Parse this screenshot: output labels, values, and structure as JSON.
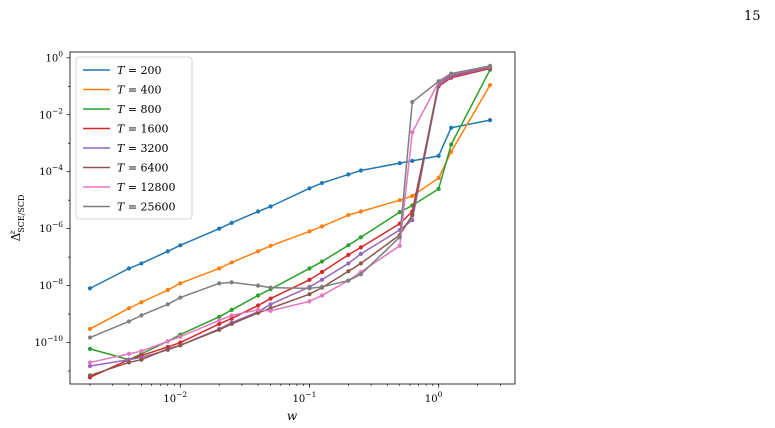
{
  "page_number": "15",
  "chart_data": {
    "type": "line",
    "title": "",
    "xlabel": "w",
    "ylabel": "Δ^z_SCE/SCD",
    "ylabel_main": "Δ",
    "ylabel_sup": "z",
    "ylabel_sub": "SCE/SCD",
    "xscale": "log",
    "yscale": "log",
    "xlim": [
      0.0014,
      3.9
    ],
    "ylim": [
      3.5e-12,
      1.6
    ],
    "xticks": [
      {
        "value": 0.01,
        "base": "10",
        "exp": "−2"
      },
      {
        "value": 0.1,
        "base": "10",
        "exp": "−1"
      },
      {
        "value": 1,
        "base": "10",
        "exp": "0"
      }
    ],
    "yticks": [
      {
        "value": 1e-10,
        "base": "10",
        "exp": "−10"
      },
      {
        "value": 1e-08,
        "base": "10",
        "exp": "−8"
      },
      {
        "value": 1e-06,
        "base": "10",
        "exp": "−6"
      },
      {
        "value": 0.0001,
        "base": "10",
        "exp": "−4"
      },
      {
        "value": 0.01,
        "base": "10",
        "exp": "−2"
      },
      {
        "value": 1,
        "base": "10",
        "exp": "0"
      }
    ],
    "grid": false,
    "legend_position": "top-left",
    "series": [
      {
        "name": "T = 200",
        "label_var": "T",
        "label_val": "= 200",
        "color": "#1f77b4",
        "x": [
          0.002,
          0.004,
          0.005,
          0.008,
          0.01,
          0.02,
          0.025,
          0.04,
          0.05,
          0.1,
          0.125,
          0.2,
          0.25,
          0.5,
          0.625,
          1.0,
          1.25,
          2.5
        ],
        "y": [
          8e-09,
          4e-08,
          6e-08,
          1.6e-07,
          2.6e-07,
          1e-06,
          1.6e-06,
          4e-06,
          6e-06,
          2.6e-05,
          4e-05,
          8e-05,
          0.00011,
          0.0002,
          0.00024,
          0.00036,
          0.0035,
          0.0065
        ]
      },
      {
        "name": "T = 400",
        "label_var": "T",
        "label_val": "= 400",
        "color": "#ff7f0e",
        "x": [
          0.002,
          0.004,
          0.005,
          0.008,
          0.01,
          0.02,
          0.025,
          0.04,
          0.05,
          0.1,
          0.125,
          0.2,
          0.25,
          0.5,
          0.625,
          1.0,
          1.25,
          2.5
        ],
        "y": [
          3e-10,
          1.6e-09,
          2.6e-09,
          7e-09,
          1.2e-08,
          4e-08,
          6.5e-08,
          1.6e-07,
          2.5e-07,
          8e-07,
          1.2e-06,
          3e-06,
          4e-06,
          1e-05,
          1.4e-05,
          6e-05,
          0.0005,
          0.11
        ]
      },
      {
        "name": "T = 800",
        "label_var": "T",
        "label_val": "= 800",
        "color": "#2ca02c",
        "x": [
          0.002,
          0.004,
          0.005,
          0.008,
          0.01,
          0.02,
          0.025,
          0.04,
          0.05,
          0.1,
          0.125,
          0.2,
          0.25,
          0.5,
          0.625,
          1.0,
          1.25,
          2.5
        ],
        "y": [
          6e-11,
          2.5e-11,
          4e-11,
          1.1e-10,
          1.9e-10,
          8e-10,
          1.4e-09,
          4.5e-09,
          7.5e-09,
          4e-08,
          7e-08,
          2.6e-07,
          5e-07,
          3.8e-06,
          6.5e-06,
          2.5e-05,
          0.0009,
          0.38
        ]
      },
      {
        "name": "T = 1600",
        "label_var": "T",
        "label_val": "= 1600",
        "color": "#d62728",
        "x": [
          0.002,
          0.004,
          0.005,
          0.008,
          0.01,
          0.02,
          0.025,
          0.04,
          0.05,
          0.1,
          0.125,
          0.2,
          0.25,
          0.5,
          0.625,
          1.0,
          1.25,
          2.5
        ],
        "y": [
          6e-12,
          2.5e-11,
          3.5e-11,
          7e-11,
          1e-10,
          4.5e-10,
          7e-10,
          2e-09,
          3.5e-09,
          1.6e-08,
          3e-08,
          1.2e-07,
          2.2e-07,
          1.5e-06,
          4e-06,
          0.1,
          0.2,
          0.42
        ]
      },
      {
        "name": "T = 3200",
        "label_var": "T",
        "label_val": "= 3200",
        "color": "#9467bd",
        "x": [
          0.002,
          0.004,
          0.005,
          0.008,
          0.01,
          0.02,
          0.025,
          0.04,
          0.05,
          0.1,
          0.125,
          0.2,
          0.25,
          0.5,
          0.625,
          1.0,
          1.25,
          2.5
        ],
        "y": [
          1.5e-11,
          2.5e-11,
          3e-11,
          5.5e-11,
          8e-11,
          3e-10,
          5e-10,
          1.2e-09,
          2.2e-09,
          9e-09,
          1.6e-08,
          6e-08,
          1.3e-07,
          9e-07,
          2e-06,
          0.11,
          0.22,
          0.45
        ]
      },
      {
        "name": "T = 6400",
        "label_var": "T",
        "label_val": "= 6400",
        "color": "#8c564b",
        "x": [
          0.002,
          0.004,
          0.005,
          0.008,
          0.01,
          0.02,
          0.025,
          0.04,
          0.05,
          0.1,
          0.125,
          0.2,
          0.25,
          0.5,
          0.625,
          1.0,
          1.25,
          2.5
        ],
        "y": [
          7e-12,
          2e-11,
          2.5e-11,
          6e-11,
          8e-11,
          2.8e-10,
          4.5e-10,
          1.1e-09,
          1.6e-09,
          5e-09,
          8.5e-09,
          3.2e-08,
          6e-08,
          6e-07,
          3e-06,
          0.13,
          0.25,
          0.48
        ]
      },
      {
        "name": "T = 12800",
        "label_var": "T",
        "label_val": "= 12800",
        "color": "#e377c2",
        "x": [
          0.002,
          0.004,
          0.005,
          0.008,
          0.01,
          0.02,
          0.025,
          0.04,
          0.05,
          0.1,
          0.125,
          0.2,
          0.25,
          0.5,
          0.625,
          1.0,
          1.25,
          2.5
        ],
        "y": [
          2e-11,
          4e-11,
          5e-11,
          1.1e-10,
          1.6e-10,
          6e-10,
          9e-10,
          1.4e-09,
          1.3e-09,
          2.8e-09,
          4.5e-09,
          1.5e-08,
          3e-08,
          2.5e-07,
          0.0024,
          0.14,
          0.27,
          0.5
        ]
      },
      {
        "name": "T = 25600",
        "label_var": "T",
        "label_val": "= 25600",
        "color": "#7f7f7f",
        "x": [
          0.002,
          0.004,
          0.005,
          0.008,
          0.01,
          0.02,
          0.025,
          0.04,
          0.05,
          0.1,
          0.125,
          0.2,
          0.25,
          0.5,
          0.625,
          1.0,
          1.25,
          2.5
        ],
        "y": [
          1.5e-10,
          5.5e-10,
          9e-10,
          2.2e-09,
          3.8e-09,
          1.2e-08,
          1.3e-08,
          1e-08,
          8.5e-09,
          8e-09,
          9e-09,
          1.5e-08,
          2.5e-08,
          5e-07,
          0.028,
          0.15,
          0.28,
          0.52
        ]
      }
    ]
  }
}
